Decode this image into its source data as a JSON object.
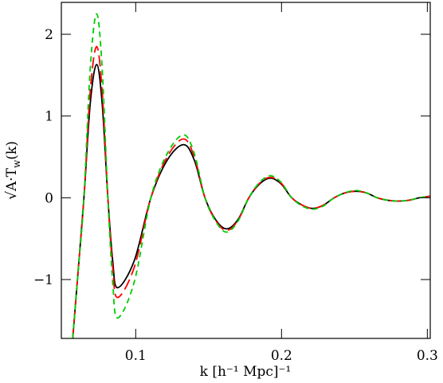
{
  "chart_data": {
    "type": "line",
    "xlabel": "k [h⁻¹ Mpc]⁻¹",
    "ylabel": {
      "main": "√A·T",
      "sub": "w",
      "tail": "(k)"
    },
    "x": [
      0.0568,
      0.0605,
      0.0645,
      0.0688,
      0.0732,
      0.077,
      0.0809,
      0.0842,
      0.0875,
      0.099,
      0.1104,
      0.1216,
      0.1328,
      0.1402,
      0.1475,
      0.1549,
      0.1623,
      0.17,
      0.1776,
      0.185,
      0.1923,
      0.1997,
      0.207,
      0.2142,
      0.2213,
      0.2287,
      0.2361,
      0.2435,
      0.2508,
      0.2582,
      0.2656,
      0.2728,
      0.28,
      0.2873,
      0.2945,
      0.302
    ],
    "series": [
      {
        "color": "#000000",
        "dash": "none",
        "values": [
          -1.72,
          -0.9,
          0,
          1.15,
          1.63,
          1.15,
          0,
          -0.77,
          -1.1,
          -0.77,
          0,
          0.46,
          0.65,
          0.46,
          0,
          -0.27,
          -0.38,
          -0.27,
          0,
          0.17,
          0.24,
          0.17,
          0,
          -0.09,
          -0.13,
          -0.09,
          0,
          0.06,
          0.08,
          0.06,
          0,
          -0.03,
          -0.04,
          -0.03,
          0,
          0.02
        ]
      },
      {
        "color": "#ff0000",
        "dash": "14 6",
        "values": [
          -1.72,
          -0.9,
          0,
          1.3,
          1.85,
          1.3,
          0,
          -0.85,
          -1.22,
          -0.85,
          0,
          0.5,
          0.72,
          0.5,
          0,
          -0.28,
          -0.4,
          -0.28,
          0,
          0.18,
          0.25,
          0.18,
          0,
          -0.09,
          -0.13,
          -0.09,
          0,
          0.06,
          0.08,
          0.06,
          0,
          -0.03,
          -0.04,
          -0.03,
          0,
          0.02
        ]
      },
      {
        "color": "#00cc00",
        "dash": "7 5",
        "values": [
          -1.72,
          -0.9,
          0,
          1.58,
          2.25,
          1.58,
          0,
          -1.03,
          -1.47,
          -1.03,
          0,
          0.54,
          0.77,
          0.54,
          0,
          -0.29,
          -0.42,
          -0.29,
          0,
          0.19,
          0.27,
          0.19,
          0,
          -0.1,
          -0.14,
          -0.1,
          0,
          0.06,
          0.09,
          0.06,
          0,
          -0.03,
          -0.04,
          -0.03,
          0,
          0.02
        ]
      }
    ],
    "xlim": [
      0.049,
      0.302
    ],
    "ylim": [
      -1.72,
      2.39
    ],
    "xticks": [
      0.1,
      0.2,
      0.3
    ],
    "yticks": [
      {
        "value": -1,
        "label": "−1"
      },
      0,
      1,
      2
    ]
  }
}
